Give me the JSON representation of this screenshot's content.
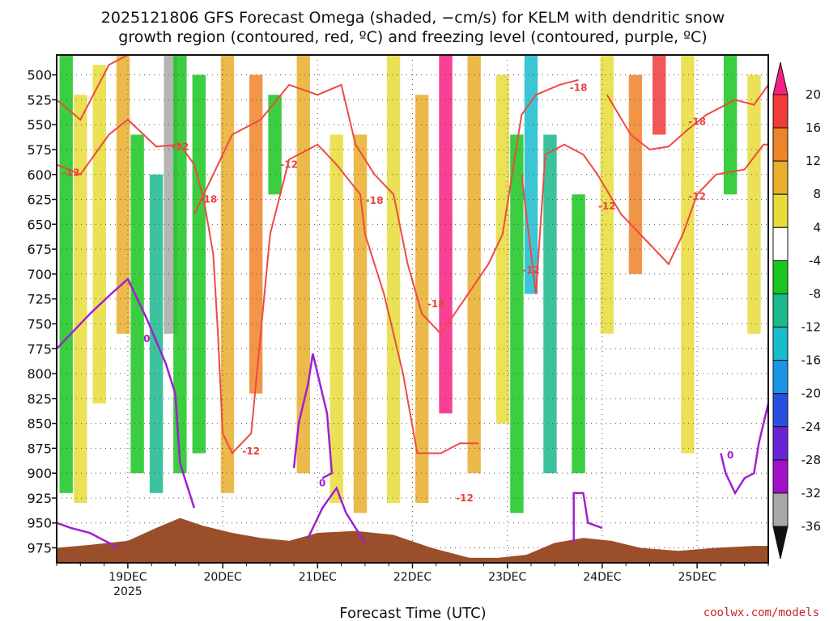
{
  "chart_data": {
    "type": "heatmap",
    "title_lines": [
      "2025121806 GFS Forecast Omega (shaded, −cm/s) for KELM with dendritic snow",
      "growth region (contoured, red, ºC) and freezing level (contoured, purple, ºC)"
    ],
    "xlabel": "Forecast Time (UTC)",
    "ylabel": "",
    "y_axis": {
      "unit": "hPa",
      "ticks": [
        500,
        525,
        550,
        575,
        600,
        625,
        650,
        675,
        700,
        725,
        750,
        775,
        800,
        825,
        850,
        875,
        900,
        925,
        950,
        975
      ],
      "range": [
        480,
        990
      ],
      "inverted": true
    },
    "x_axis": {
      "range_days": [
        18.25,
        25.75
      ],
      "ticks": [
        {
          "value": 19,
          "label": "19DEC",
          "sublabel": "2025"
        },
        {
          "value": 20,
          "label": "20DEC",
          "sublabel": ""
        },
        {
          "value": 21,
          "label": "21DEC",
          "sublabel": ""
        },
        {
          "value": 22,
          "label": "22DEC",
          "sublabel": ""
        },
        {
          "value": 23,
          "label": "23DEC",
          "sublabel": ""
        },
        {
          "value": 24,
          "label": "24DEC",
          "sublabel": ""
        },
        {
          "value": 25,
          "label": "25DEC",
          "sublabel": ""
        }
      ]
    },
    "colorbar": {
      "levels": [
        20,
        16,
        12,
        8,
        4,
        -4,
        -8,
        -12,
        -16,
        -20,
        -24,
        -28,
        -32,
        -36
      ],
      "colors": [
        "#f81e83",
        "#f23a3a",
        "#ee8428",
        "#e8ae2c",
        "#e8dc3a",
        "#ffffff",
        "#19c61e",
        "#1ab98c",
        "#18bccd",
        "#1a96e8",
        "#2a4fe0",
        "#6a24d8",
        "#a010c8",
        "#a8a8a8",
        "#111111"
      ]
    },
    "omega_bands": [
      {
        "day": 18.35,
        "value": -8,
        "p_top": 480,
        "p_bottom": 920
      },
      {
        "day": 18.5,
        "value": 6,
        "p_top": 520,
        "p_bottom": 930
      },
      {
        "day": 18.7,
        "value": 6,
        "p_top": 490,
        "p_bottom": 830
      },
      {
        "day": 18.95,
        "value": 10,
        "p_top": 480,
        "p_bottom": 760
      },
      {
        "day": 19.1,
        "value": -8,
        "p_top": 560,
        "p_bottom": 900
      },
      {
        "day": 19.3,
        "value": -12,
        "p_top": 600,
        "p_bottom": 920
      },
      {
        "day": 19.45,
        "value": -36,
        "p_top": 480,
        "p_bottom": 760
      },
      {
        "day": 19.55,
        "value": -8,
        "p_top": 480,
        "p_bottom": 900
      },
      {
        "day": 19.75,
        "value": -8,
        "p_top": 500,
        "p_bottom": 880
      },
      {
        "day": 20.05,
        "value": 10,
        "p_top": 480,
        "p_bottom": 920
      },
      {
        "day": 20.35,
        "value": 14,
        "p_top": 500,
        "p_bottom": 820
      },
      {
        "day": 20.55,
        "value": -8,
        "p_top": 520,
        "p_bottom": 620
      },
      {
        "day": 20.85,
        "value": 8,
        "p_top": 480,
        "p_bottom": 900
      },
      {
        "day": 21.2,
        "value": 6,
        "p_top": 560,
        "p_bottom": 930
      },
      {
        "day": 21.45,
        "value": 10,
        "p_top": 560,
        "p_bottom": 940
      },
      {
        "day": 21.8,
        "value": 6,
        "p_top": 480,
        "p_bottom": 930
      },
      {
        "day": 22.1,
        "value": 10,
        "p_top": 520,
        "p_bottom": 930
      },
      {
        "day": 22.35,
        "value": 20,
        "p_top": 480,
        "p_bottom": 840
      },
      {
        "day": 22.65,
        "value": 8,
        "p_top": 480,
        "p_bottom": 900
      },
      {
        "day": 22.95,
        "value": 4,
        "p_top": 500,
        "p_bottom": 850
      },
      {
        "day": 23.1,
        "value": -8,
        "p_top": 560,
        "p_bottom": 940
      },
      {
        "day": 23.25,
        "value": -16,
        "p_top": 480,
        "p_bottom": 720
      },
      {
        "day": 23.45,
        "value": -12,
        "p_top": 560,
        "p_bottom": 900
      },
      {
        "day": 23.75,
        "value": -8,
        "p_top": 620,
        "p_bottom": 900
      },
      {
        "day": 24.05,
        "value": 6,
        "p_top": 480,
        "p_bottom": 760
      },
      {
        "day": 24.35,
        "value": 12,
        "p_top": 500,
        "p_bottom": 700
      },
      {
        "day": 24.6,
        "value": 18,
        "p_top": 480,
        "p_bottom": 560
      },
      {
        "day": 24.9,
        "value": 6,
        "p_top": 480,
        "p_bottom": 880
      },
      {
        "day": 25.35,
        "value": -8,
        "p_top": 480,
        "p_bottom": 620
      },
      {
        "day": 25.6,
        "value": 4,
        "p_top": 500,
        "p_bottom": 760
      }
    ],
    "dgz_contours": [
      {
        "level": -12,
        "points": [
          [
            18.25,
            590
          ],
          [
            18.5,
            600
          ],
          [
            18.8,
            560
          ],
          [
            19.0,
            545
          ],
          [
            19.3,
            572
          ],
          [
            19.55,
            570
          ],
          [
            19.7,
            590
          ],
          [
            19.8,
            625
          ],
          [
            19.9,
            680
          ],
          [
            19.95,
            760
          ],
          [
            20.0,
            860
          ],
          [
            20.1,
            880
          ],
          [
            20.3,
            860
          ],
          [
            20.5,
            660
          ],
          [
            20.7,
            585
          ],
          [
            21.0,
            570
          ],
          [
            21.2,
            590
          ],
          [
            21.45,
            620
          ],
          [
            21.5,
            660
          ],
          [
            21.7,
            720
          ],
          [
            21.9,
            800
          ],
          [
            22.05,
            880
          ],
          [
            22.3,
            880
          ],
          [
            22.5,
            870
          ],
          [
            22.7,
            870
          ]
        ]
      },
      {
        "level": -18,
        "points": [
          [
            18.25,
            525
          ],
          [
            18.5,
            545
          ],
          [
            18.8,
            490
          ],
          [
            19.0,
            480
          ]
        ]
      },
      {
        "level": -18,
        "points": [
          [
            19.7,
            640
          ],
          [
            19.9,
            600
          ],
          [
            20.1,
            560
          ],
          [
            20.4,
            545
          ],
          [
            20.7,
            510
          ],
          [
            21.0,
            520
          ],
          [
            21.25,
            510
          ],
          [
            21.4,
            570
          ],
          [
            21.6,
            600
          ],
          [
            21.8,
            620
          ],
          [
            21.95,
            690
          ],
          [
            22.1,
            740
          ],
          [
            22.3,
            760
          ]
        ]
      },
      {
        "level": -18,
        "points": [
          [
            22.3,
            760
          ],
          [
            22.55,
            725
          ],
          [
            22.8,
            690
          ],
          [
            22.95,
            660
          ],
          [
            23.05,
            600
          ],
          [
            23.15,
            540
          ],
          [
            23.3,
            520
          ],
          [
            23.55,
            510
          ],
          [
            23.75,
            505
          ]
        ]
      },
      {
        "level": -12,
        "points": [
          [
            23.15,
            600
          ],
          [
            23.3,
            720
          ],
          [
            23.4,
            580
          ],
          [
            23.6,
            570
          ],
          [
            23.8,
            580
          ],
          [
            23.95,
            600
          ],
          [
            24.2,
            640
          ],
          [
            24.5,
            670
          ],
          [
            24.7,
            690
          ],
          [
            24.85,
            660
          ],
          [
            25.0,
            620
          ],
          [
            25.2,
            600
          ],
          [
            25.5,
            595
          ],
          [
            25.7,
            570
          ],
          [
            25.75,
            570
          ]
        ]
      },
      {
        "level": -18,
        "points": [
          [
            24.05,
            520
          ],
          [
            24.3,
            560
          ],
          [
            24.5,
            575
          ],
          [
            24.7,
            572
          ],
          [
            24.9,
            555
          ],
          [
            25.1,
            540
          ],
          [
            25.4,
            525
          ],
          [
            25.6,
            530
          ],
          [
            25.75,
            510
          ]
        ]
      }
    ],
    "red_contour_labels": [
      {
        "day": 18.4,
        "p": 598,
        "text": "-12"
      },
      {
        "day": 19.55,
        "p": 572,
        "text": "-12"
      },
      {
        "day": 19.85,
        "p": 625,
        "text": "-18"
      },
      {
        "day": 20.7,
        "p": 590,
        "text": "-12"
      },
      {
        "day": 20.3,
        "p": 878,
        "text": "-12"
      },
      {
        "day": 21.6,
        "p": 626,
        "text": "-18"
      },
      {
        "day": 22.25,
        "p": 730,
        "text": "-18"
      },
      {
        "day": 22.55,
        "p": 925,
        "text": "-12"
      },
      {
        "day": 23.25,
        "p": 696,
        "text": "-12"
      },
      {
        "day": 23.75,
        "p": 513,
        "text": "-18"
      },
      {
        "day": 24.05,
        "p": 632,
        "text": "-12"
      },
      {
        "day": 25.0,
        "p": 547,
        "text": "-18"
      },
      {
        "day": 25.0,
        "p": 622,
        "text": "-12"
      }
    ],
    "freezing_contours": [
      {
        "level": 0,
        "points": [
          [
            18.25,
            775
          ],
          [
            18.4,
            760
          ],
          [
            18.6,
            740
          ],
          [
            18.8,
            722
          ],
          [
            19.0,
            705
          ],
          [
            19.2,
            745
          ],
          [
            19.4,
            790
          ],
          [
            19.5,
            820
          ],
          [
            19.55,
            890
          ],
          [
            19.7,
            935
          ]
        ]
      },
      {
        "level": 0,
        "points": [
          [
            18.25,
            950
          ],
          [
            18.4,
            955
          ],
          [
            18.6,
            960
          ],
          [
            18.9,
            975
          ]
        ]
      },
      {
        "level": 0,
        "points": [
          [
            20.75,
            895
          ],
          [
            20.8,
            850
          ],
          [
            20.9,
            810
          ],
          [
            20.95,
            780
          ],
          [
            21.1,
            840
          ],
          [
            21.15,
            900
          ],
          [
            21.05,
            905
          ]
        ]
      },
      {
        "level": 0,
        "points": [
          [
            20.9,
            965
          ],
          [
            21.05,
            935
          ],
          [
            21.2,
            915
          ],
          [
            21.3,
            940
          ],
          [
            21.5,
            970
          ]
        ]
      },
      {
        "level": 0,
        "points": [
          [
            23.7,
            970
          ],
          [
            23.7,
            920
          ],
          [
            23.8,
            920
          ],
          [
            23.85,
            950
          ],
          [
            24.0,
            955
          ]
        ]
      },
      {
        "level": 0,
        "points": [
          [
            25.25,
            880
          ],
          [
            25.3,
            900
          ],
          [
            25.4,
            920
          ],
          [
            25.5,
            905
          ],
          [
            25.6,
            900
          ],
          [
            25.65,
            870
          ],
          [
            25.75,
            830
          ]
        ]
      }
    ],
    "purple_contour_labels": [
      {
        "day": 19.2,
        "p": 765,
        "text": "0"
      },
      {
        "day": 21.05,
        "p": 910,
        "text": "0"
      },
      {
        "day": 25.35,
        "p": 882,
        "text": "0"
      }
    ],
    "terrain": {
      "color": "#9b4e2a",
      "points": [
        [
          18.25,
          975
        ],
        [
          18.6,
          972
        ],
        [
          19.0,
          968
        ],
        [
          19.3,
          955
        ],
        [
          19.55,
          945
        ],
        [
          19.8,
          953
        ],
        [
          20.1,
          960
        ],
        [
          20.4,
          965
        ],
        [
          20.7,
          968
        ],
        [
          21.0,
          960
        ],
        [
          21.4,
          958
        ],
        [
          21.8,
          962
        ],
        [
          22.2,
          975
        ],
        [
          22.6,
          985
        ],
        [
          22.9,
          985
        ],
        [
          23.2,
          982
        ],
        [
          23.5,
          970
        ],
        [
          23.8,
          965
        ],
        [
          24.1,
          968
        ],
        [
          24.4,
          975
        ],
        [
          24.8,
          978
        ],
        [
          25.2,
          975
        ],
        [
          25.6,
          973
        ],
        [
          25.75,
          973
        ]
      ]
    }
  },
  "credit": "coolwx.com/models"
}
